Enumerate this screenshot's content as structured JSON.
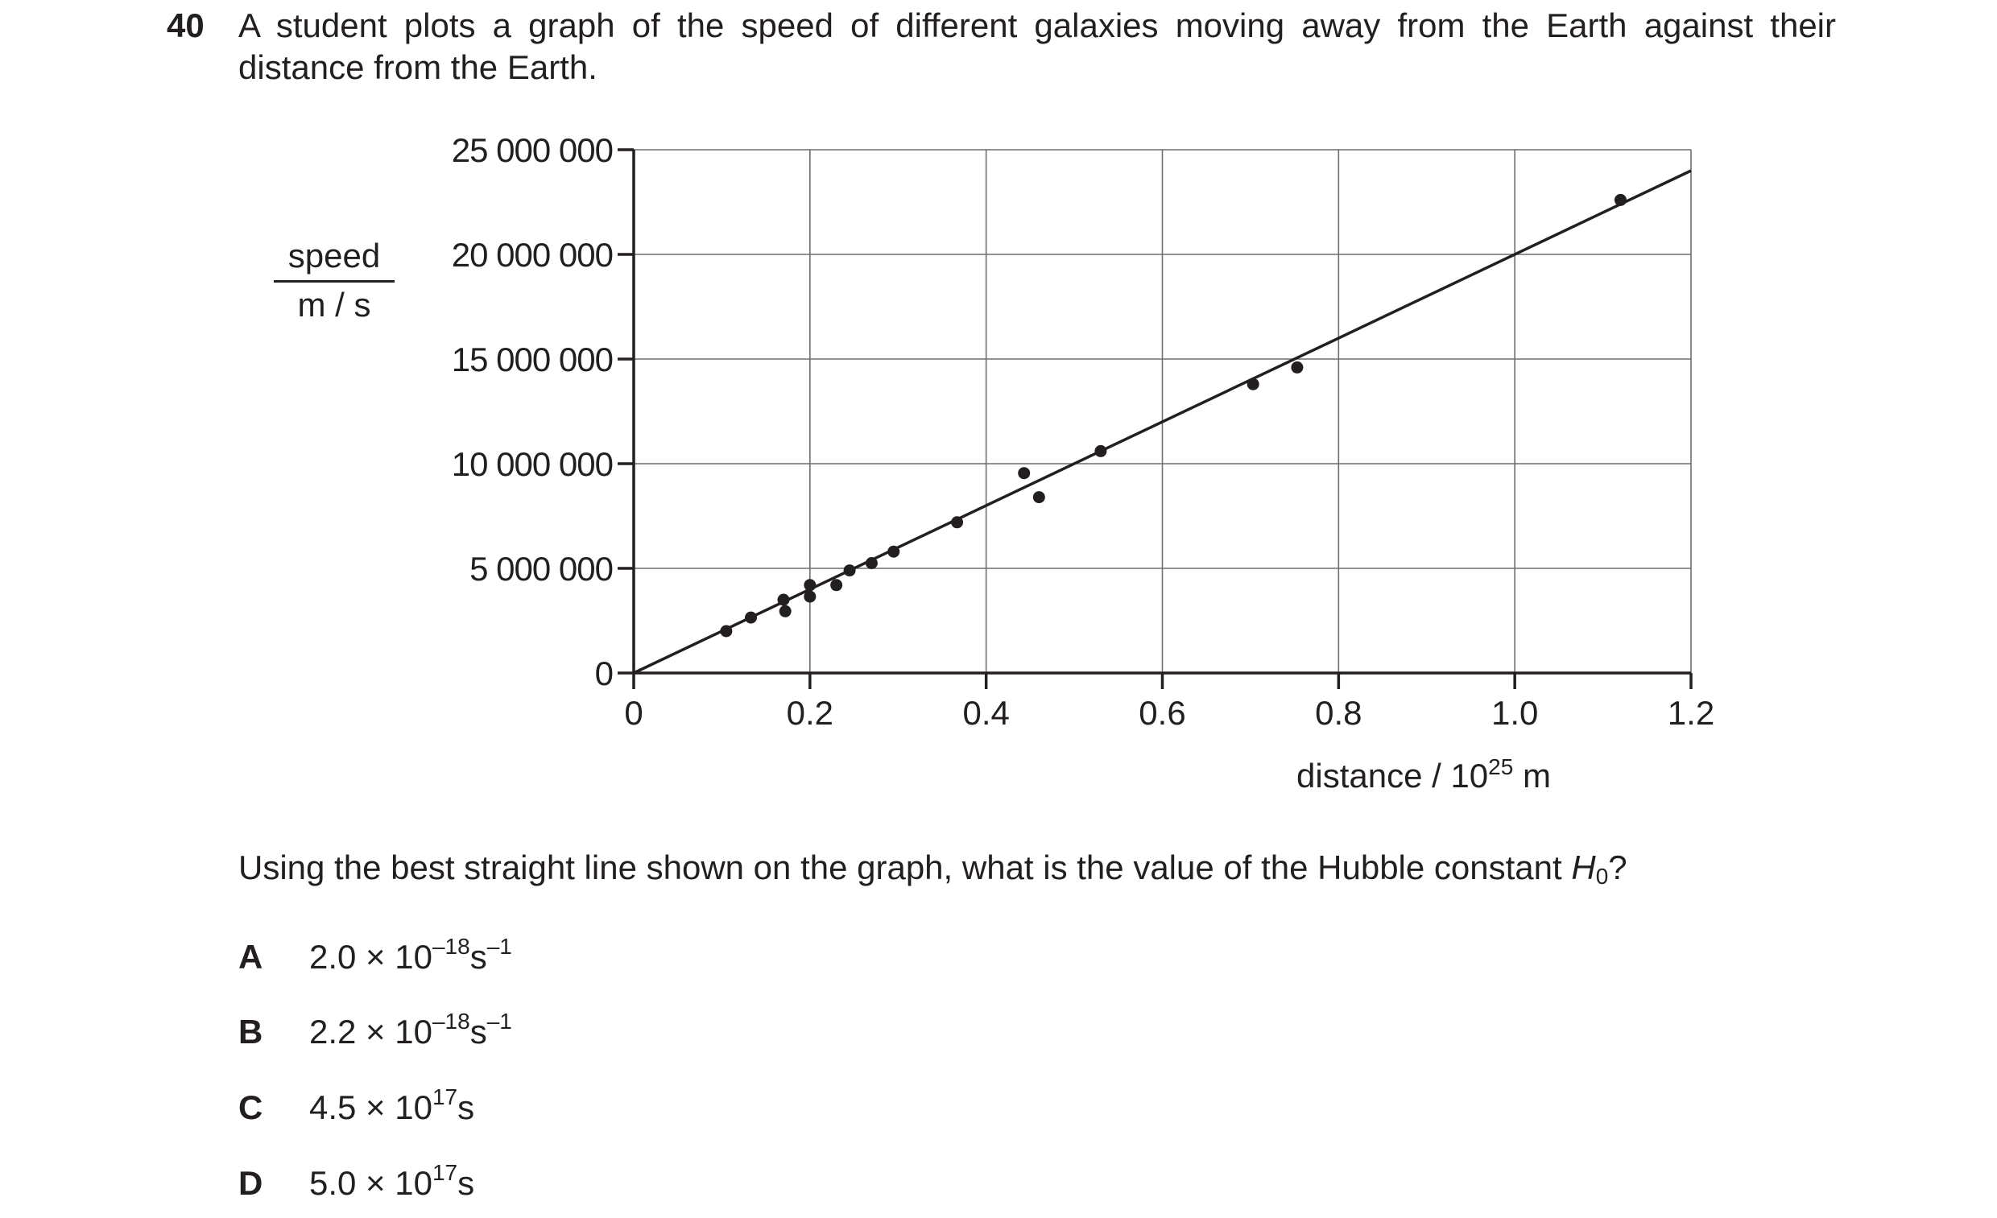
{
  "question": {
    "number": "40",
    "text": "A student plots a graph of the speed of different galaxies moving away from the Earth against their distance from the Earth.",
    "prompt_before": "Using the best straight line shown on the graph, what is the value of the Hubble constant ",
    "prompt_symbol": "H",
    "prompt_subscript": "0",
    "prompt_after": "?"
  },
  "options": [
    {
      "letter": "A",
      "mantissa": "2.0 × 10",
      "exponent": "–18",
      "unit": "s",
      "unit_exponent": "–1"
    },
    {
      "letter": "B",
      "mantissa": "2.2 × 10",
      "exponent": "–18",
      "unit": "s",
      "unit_exponent": "–1"
    },
    {
      "letter": "C",
      "mantissa": "4.5 × 10",
      "exponent": "17",
      "unit": "s",
      "unit_exponent": ""
    },
    {
      "letter": "D",
      "mantissa": "5.0 × 10",
      "exponent": "17",
      "unit": "s",
      "unit_exponent": ""
    }
  ],
  "chart_data": {
    "type": "scatter",
    "ylabel_numerator": "speed",
    "ylabel_denominator": "m / s",
    "xlabel": "distance / 10",
    "xlabel_exponent": "25",
    "xlabel_unit": " m",
    "xlim": [
      0,
      1.2
    ],
    "ylim": [
      0,
      25000000
    ],
    "grid": true,
    "x_ticks": [
      {
        "value": 0,
        "label": "0"
      },
      {
        "value": 0.2,
        "label": "0.2"
      },
      {
        "value": 0.4,
        "label": "0.4"
      },
      {
        "value": 0.6,
        "label": "0.6"
      },
      {
        "value": 0.8,
        "label": "0.8"
      },
      {
        "value": 1.0,
        "label": "1.0"
      },
      {
        "value": 1.2,
        "label": "1.2"
      }
    ],
    "y_ticks": [
      {
        "value": 0,
        "label": "0"
      },
      {
        "value": 5000000,
        "label": "5 000 000"
      },
      {
        "value": 10000000,
        "label": "10 000 000"
      },
      {
        "value": 15000000,
        "label": "15 000 000"
      },
      {
        "value": 20000000,
        "label": "20 000 000"
      },
      {
        "value": 25000000,
        "label": "25 000 000"
      }
    ],
    "points": [
      {
        "x": 0.105,
        "y": 2000000
      },
      {
        "x": 0.133,
        "y": 2650000
      },
      {
        "x": 0.17,
        "y": 3500000
      },
      {
        "x": 0.172,
        "y": 2950000
      },
      {
        "x": 0.2,
        "y": 4200000
      },
      {
        "x": 0.2,
        "y": 3650000
      },
      {
        "x": 0.23,
        "y": 4200000
      },
      {
        "x": 0.245,
        "y": 4900000
      },
      {
        "x": 0.27,
        "y": 5250000
      },
      {
        "x": 0.295,
        "y": 5800000
      },
      {
        "x": 0.367,
        "y": 7200000
      },
      {
        "x": 0.443,
        "y": 9550000
      },
      {
        "x": 0.46,
        "y": 8400000
      },
      {
        "x": 0.53,
        "y": 10600000
      },
      {
        "x": 0.703,
        "y": 13800000
      },
      {
        "x": 0.753,
        "y": 14600000
      },
      {
        "x": 1.12,
        "y": 22600000
      }
    ],
    "best_fit_line": {
      "x": [
        0,
        1.2
      ],
      "y": [
        0,
        24000000
      ]
    }
  }
}
